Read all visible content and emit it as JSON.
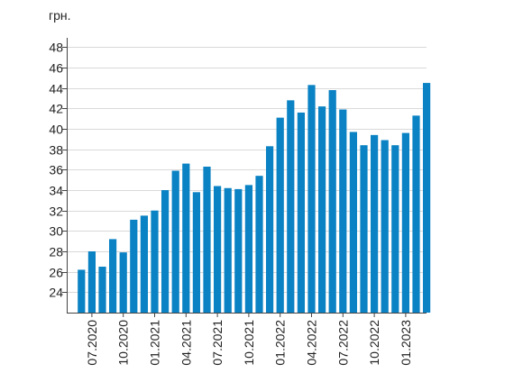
{
  "chart_data": {
    "type": "bar",
    "ylabel": "грн.",
    "ylim": [
      22,
      50
    ],
    "yticks": [
      24,
      26,
      28,
      30,
      32,
      34,
      36,
      38,
      40,
      42,
      44,
      46,
      48
    ],
    "grid": true,
    "bar_color": "#0a82c3",
    "x_tick_labels": [
      "07.2020",
      "10.2020",
      "01.2021",
      "04.2021",
      "07.2021",
      "10.2021",
      "01.2022",
      "04.2022",
      "07.2022",
      "10.2022",
      "01.2023"
    ],
    "x_tick_positions": [
      1,
      4,
      7,
      10,
      13,
      16,
      19,
      22,
      25,
      28,
      31
    ],
    "values": [
      26.2,
      28.0,
      26.5,
      29.2,
      27.9,
      31.1,
      31.5,
      32.0,
      34.0,
      35.9,
      36.6,
      33.8,
      36.3,
      34.4,
      34.2,
      34.1,
      34.5,
      35.4,
      38.3,
      41.1,
      42.8,
      41.6,
      44.3,
      42.2,
      43.8,
      41.9,
      39.7,
      38.4,
      39.4,
      38.9,
      38.4,
      39.6,
      41.3,
      44.5
    ]
  }
}
